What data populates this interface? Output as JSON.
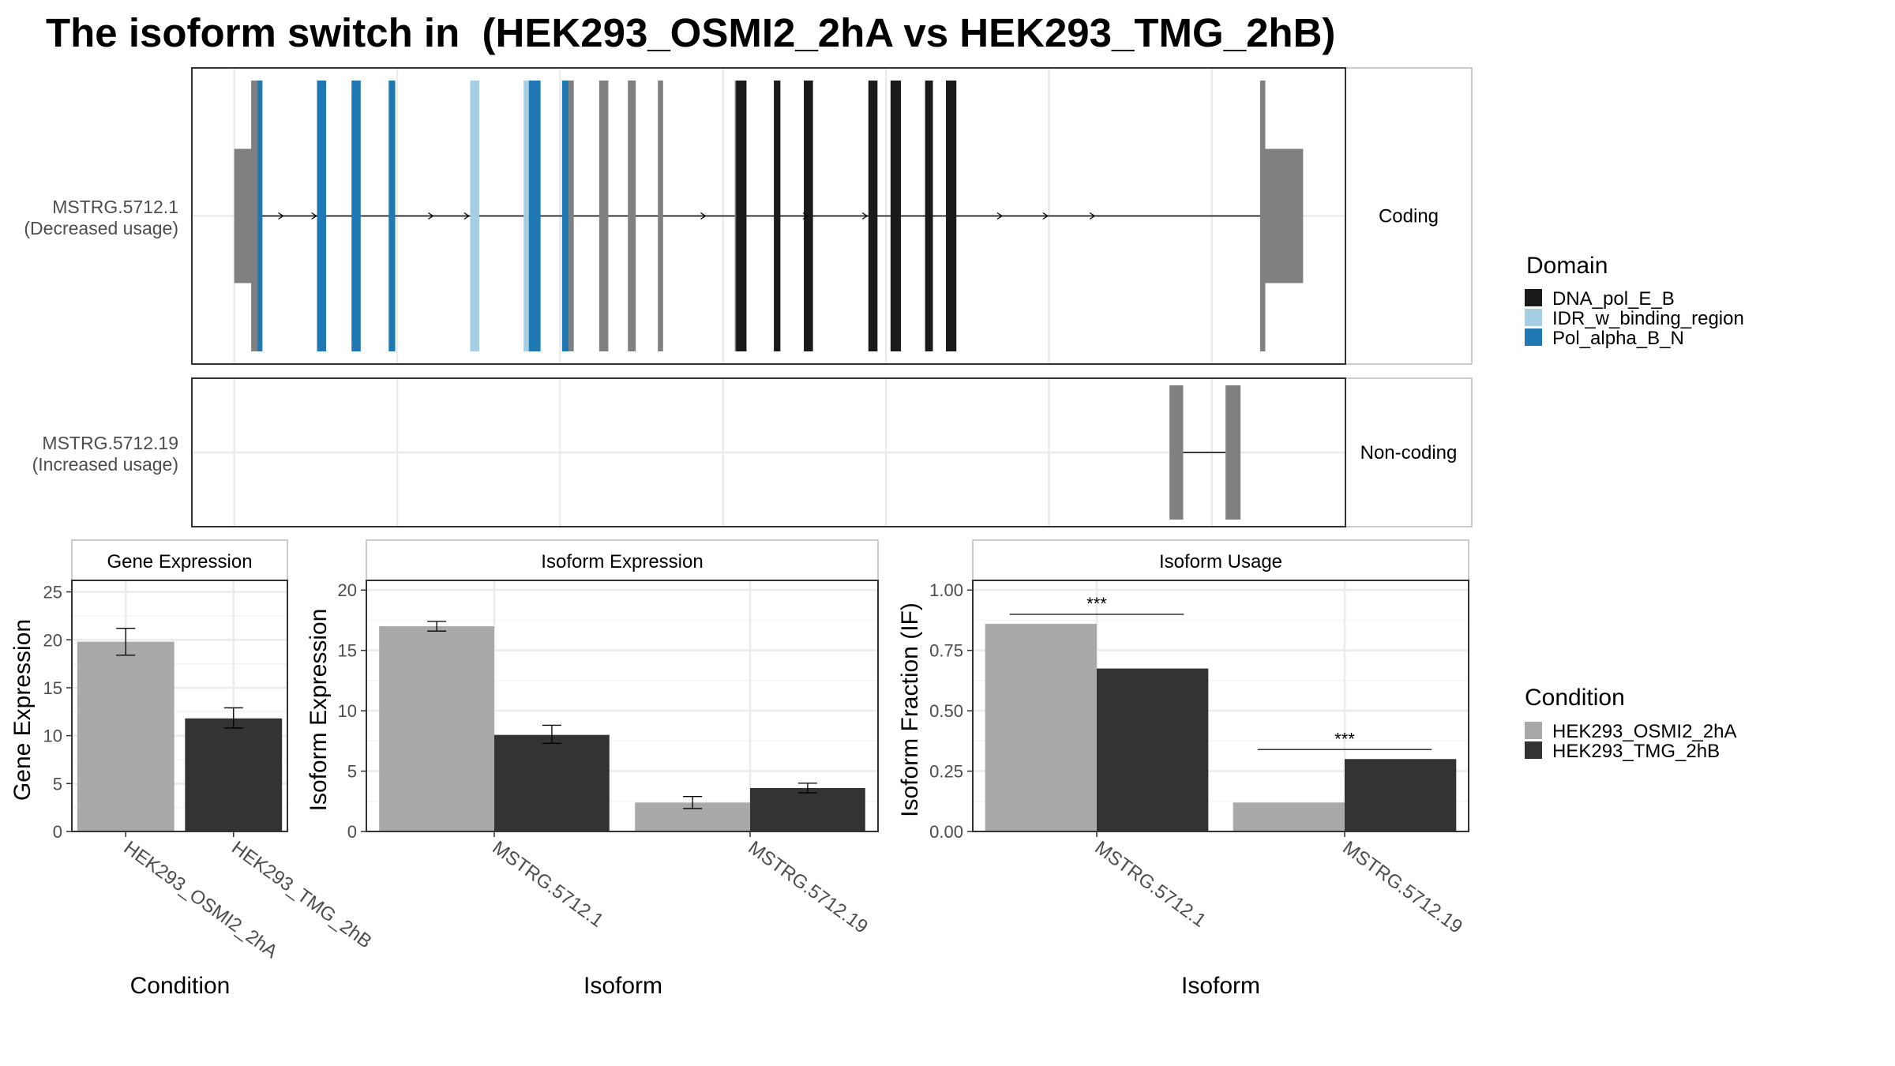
{
  "title": "The isoform switch in  (HEK293_OSMI2_2hA vs HEK293_TMG_2hB)",
  "colors": {
    "DNA_pol_E_B": "#1a1a1a",
    "IDR_w_binding_region": "#a6cee3",
    "Pol_alpha_B_N": "#1f78b4",
    "exon": "#808080",
    "HEK293_OSMI2_2hA": "#a9a9a9",
    "HEK293_TMG_2hB": "#333333"
  },
  "chart_data": [
    {
      "type": "gene-structure",
      "transcripts": [
        {
          "id": "MSTRG.5712.1",
          "usage": "(Decreased usage)",
          "strip": "Coding",
          "utr_blocks": [
            [
              0,
              40
            ],
            [
              1575,
              1640
            ]
          ],
          "exons": [
            [
              26,
              40
            ],
            [
              1574,
              1582
            ]
          ],
          "domain_exons": [
            {
              "domain": "Pol_alpha_B_N",
              "x": [
                36,
                42
              ]
            },
            {
              "domain": "Pol_alpha_B_N",
              "x": [
                127,
                141
              ]
            },
            {
              "domain": "Pol_alpha_B_N",
              "x": [
                180,
                194
              ]
            },
            {
              "domain": "Pol_alpha_B_N",
              "x": [
                237,
                247
              ]
            },
            {
              "domain": "IDR_w_binding_region",
              "x": [
                362,
                376
              ]
            },
            {
              "domain": "IDR_w_binding_region",
              "x": [
                444,
                452
              ]
            },
            {
              "domain": "Pol_alpha_B_N",
              "x": [
                452,
                470
              ]
            },
            {
              "domain": "Pol_alpha_B_N",
              "x": [
                503,
                513
              ]
            },
            {
              "domain": "DNA_pol_E_B",
              "x": [
                770,
                786
              ]
            },
            {
              "domain": "DNA_pol_E_B",
              "x": [
                828,
                838
              ]
            },
            {
              "domain": "DNA_pol_E_B",
              "x": [
                874,
                888
              ]
            },
            {
              "domain": "DNA_pol_E_B",
              "x": [
                973,
                987
              ]
            },
            {
              "domain": "DNA_pol_E_B",
              "x": [
                1007,
                1023
              ]
            },
            {
              "domain": "DNA_pol_E_B",
              "x": [
                1060,
                1072
              ]
            },
            {
              "domain": "DNA_pol_E_B",
              "x": [
                1092,
                1108
              ]
            }
          ],
          "gray_exons": [
            [
              513,
              521
            ],
            [
              560,
              574
            ],
            [
              604,
              616
            ],
            [
              650,
              658
            ],
            [
              768,
              772
            ]
          ],
          "intron": [
            0,
            1582
          ],
          "arrows": [
            75,
            126,
            305,
            360,
            723,
            880,
            971,
            1178,
            1248,
            1320
          ]
        },
        {
          "id": "MSTRG.5712.19",
          "usage": "(Increased usage)",
          "strip": "Non-coding",
          "exons": [
            [
              1435,
              1456
            ],
            [
              1521,
              1544
            ]
          ],
          "intron": [
            1456,
            1521
          ]
        }
      ],
      "domain_legend": {
        "title": "Domain",
        "items": [
          "DNA_pol_E_B",
          "IDR_w_binding_region",
          "Pol_alpha_B_N"
        ]
      }
    },
    {
      "type": "bar",
      "panel": "Gene Expression",
      "xlabel": "Condition",
      "ylabel": "Gene Expression",
      "categories": [
        "HEK293_OSMI2_2hA",
        "HEK293_TMG_2hB"
      ],
      "values": [
        19.8,
        11.8
      ],
      "errors": [
        [
          18.4,
          21.2
        ],
        [
          10.8,
          12.9
        ]
      ],
      "yticks": [
        0,
        5,
        10,
        15,
        20,
        25
      ],
      "ylim": [
        0,
        26.2
      ]
    },
    {
      "type": "bar",
      "panel": "Isoform Expression",
      "xlabel": "Isoform",
      "ylabel": "Isoform Expression",
      "categories": [
        "MSTRG.5712.1",
        "MSTRG.5712.19"
      ],
      "series": [
        {
          "name": "HEK293_OSMI2_2hA",
          "values": [
            17.0,
            2.4
          ],
          "errors": [
            [
              16.6,
              17.4
            ],
            [
              1.9,
              2.9
            ]
          ]
        },
        {
          "name": "HEK293_TMG_2hB",
          "values": [
            8.0,
            3.6
          ],
          "errors": [
            [
              7.3,
              8.8
            ],
            [
              3.2,
              4.0
            ]
          ]
        }
      ],
      "yticks": [
        0,
        5,
        10,
        15,
        20
      ],
      "ylim": [
        0,
        20.8
      ]
    },
    {
      "type": "bar",
      "panel": "Isoform Usage",
      "xlabel": "Isoform",
      "ylabel": "Isoform Fraction (IF)",
      "categories": [
        "MSTRG.5712.1",
        "MSTRG.5712.19"
      ],
      "series": [
        {
          "name": "HEK293_OSMI2_2hA",
          "values": [
            0.86,
            0.12
          ]
        },
        {
          "name": "HEK293_TMG_2hB",
          "values": [
            0.675,
            0.3
          ]
        }
      ],
      "significance": [
        {
          "category": "MSTRG.5712.1",
          "label": "***"
        },
        {
          "category": "MSTRG.5712.19",
          "label": "***"
        }
      ],
      "yticks": [
        "0.00",
        "0.25",
        "0.50",
        "0.75",
        "1.00"
      ],
      "ylim": [
        0,
        1.04
      ]
    }
  ],
  "condition_legend": {
    "title": "Condition",
    "items": [
      "HEK293_OSMI2_2hA",
      "HEK293_TMG_2hB"
    ]
  }
}
